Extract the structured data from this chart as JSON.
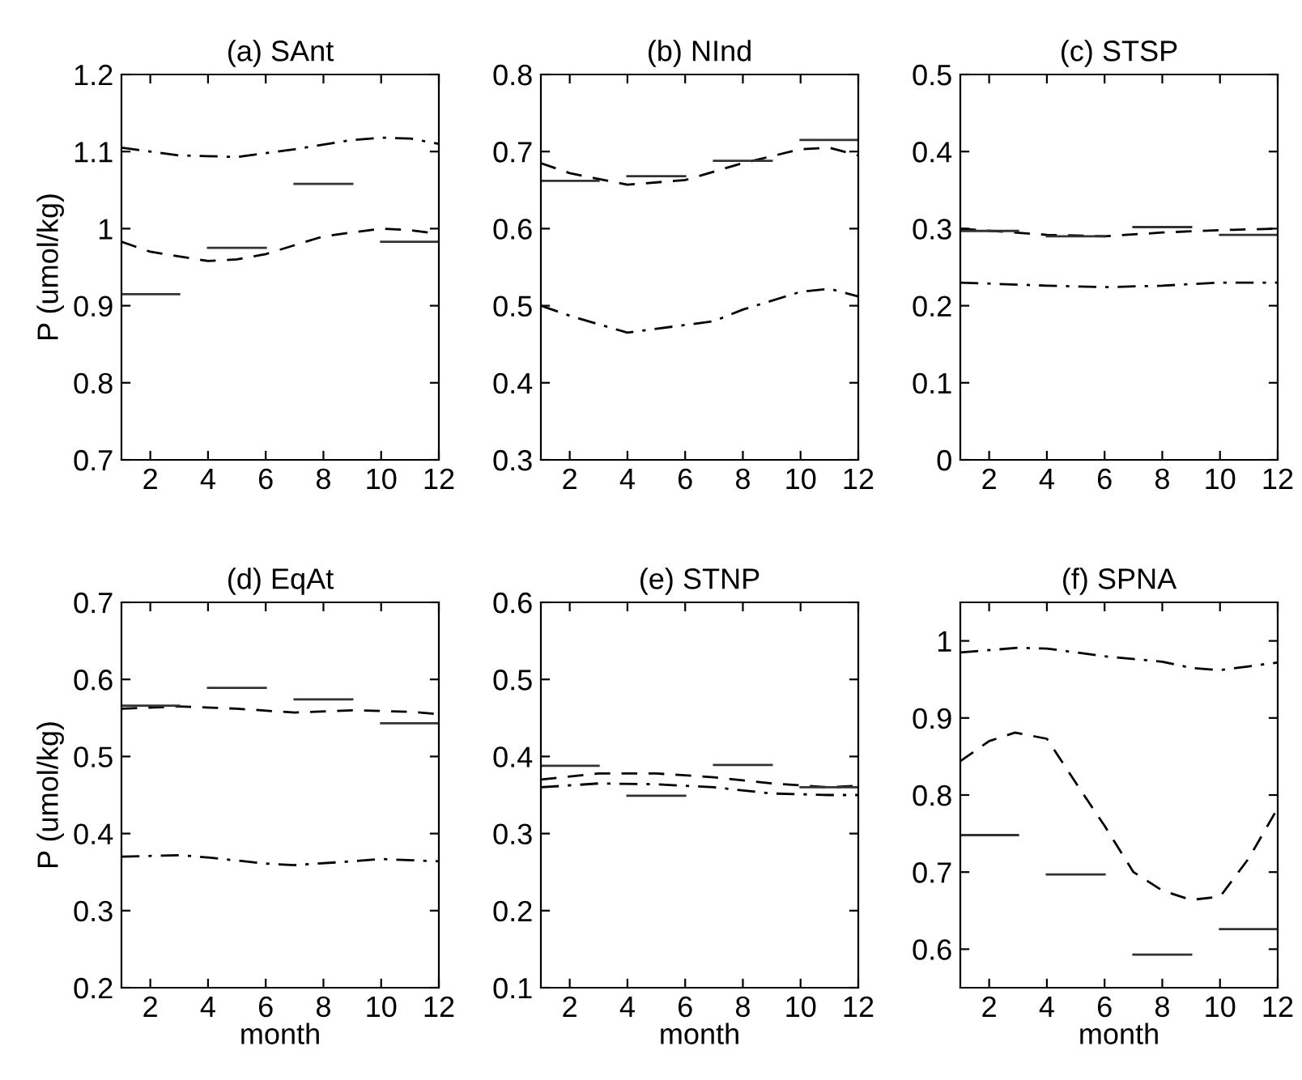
{
  "chart_data": [
    {
      "type": "line",
      "title": "(a) SAnt",
      "ylabel": "P (umol/kg)",
      "xlim": [
        1,
        12
      ],
      "xticks": [
        2,
        4,
        6,
        8,
        10,
        12
      ],
      "ylim": [
        0.7,
        1.2
      ],
      "yticks": [
        0.7,
        0.8,
        0.9,
        1,
        1.1,
        1.2
      ],
      "grid": false,
      "series": [
        {
          "color": "#000000",
          "line_style": "dashdot",
          "x": [
            1,
            3,
            5,
            7,
            9,
            10,
            11,
            12
          ],
          "values": [
            1.105,
            1.095,
            1.093,
            1.103,
            1.115,
            1.118,
            1.117,
            1.11
          ]
        },
        {
          "color": "#000000",
          "line_style": "dashed",
          "x": [
            1,
            2,
            4,
            5,
            6,
            8,
            10,
            11,
            12
          ],
          "values": [
            0.983,
            0.97,
            0.958,
            0.96,
            0.967,
            0.99,
            1.0,
            0.998,
            0.993
          ]
        },
        {
          "color": "#333333",
          "line_style": "solid",
          "x": [
            1,
            3,
            3.5,
            4,
            6,
            6.5,
            7,
            9,
            9.5,
            10,
            12
          ],
          "values": [
            0.915,
            0.915,
            null,
            0.975,
            0.975,
            null,
            1.058,
            1.058,
            null,
            0.983,
            0.983
          ]
        }
      ]
    },
    {
      "type": "line",
      "title": "(b) NInd",
      "xlim": [
        1,
        12
      ],
      "xticks": [
        2,
        4,
        6,
        8,
        10,
        12
      ],
      "ylim": [
        0.3,
        0.8
      ],
      "yticks": [
        0.3,
        0.4,
        0.5,
        0.6,
        0.7,
        0.8
      ],
      "grid": false,
      "series": [
        {
          "color": "#000000",
          "line_style": "dashdot",
          "x": [
            1,
            2,
            4,
            6,
            7,
            8,
            10,
            11,
            12
          ],
          "values": [
            0.5,
            0.487,
            0.465,
            0.475,
            0.48,
            0.495,
            0.518,
            0.522,
            0.512
          ]
        },
        {
          "color": "#000000",
          "line_style": "dashed",
          "x": [
            1,
            2,
            4,
            6,
            8,
            10,
            11,
            12
          ],
          "values": [
            0.685,
            0.672,
            0.657,
            0.663,
            0.685,
            0.703,
            0.705,
            0.695
          ]
        },
        {
          "color": "#333333",
          "line_style": "solid",
          "x": [
            1,
            3,
            3.5,
            4,
            6,
            6.5,
            7,
            9,
            9.5,
            10,
            12
          ],
          "values": [
            0.662,
            0.662,
            null,
            0.668,
            0.668,
            null,
            0.688,
            0.688,
            null,
            0.715,
            0.715
          ]
        }
      ]
    },
    {
      "type": "line",
      "title": "(c) STSP",
      "xlim": [
        1,
        12
      ],
      "xticks": [
        2,
        4,
        6,
        8,
        10,
        12
      ],
      "ylim": [
        0,
        0.5
      ],
      "yticks": [
        0,
        0.1,
        0.2,
        0.3,
        0.4,
        0.5
      ],
      "grid": false,
      "series": [
        {
          "color": "#000000",
          "line_style": "dashdot",
          "x": [
            1,
            4,
            6,
            8,
            10,
            12
          ],
          "values": [
            0.23,
            0.226,
            0.224,
            0.226,
            0.23,
            0.23
          ]
        },
        {
          "color": "#000000",
          "line_style": "dashed",
          "x": [
            1,
            4,
            6,
            8,
            10,
            12
          ],
          "values": [
            0.3,
            0.292,
            0.29,
            0.295,
            0.298,
            0.3
          ]
        },
        {
          "color": "#333333",
          "line_style": "solid",
          "x": [
            1,
            3,
            3.5,
            4,
            6,
            6.5,
            7,
            9,
            9.5,
            10,
            12
          ],
          "values": [
            0.297,
            0.297,
            null,
            0.29,
            0.29,
            null,
            0.302,
            0.302,
            null,
            0.292,
            0.292
          ]
        }
      ]
    },
    {
      "type": "line",
      "title": "(d) EqAt",
      "xlabel": "month",
      "ylabel": "P (umol/kg)",
      "xlim": [
        1,
        12
      ],
      "xticks": [
        2,
        4,
        6,
        8,
        10,
        12
      ],
      "ylim": [
        0.2,
        0.7
      ],
      "yticks": [
        0.2,
        0.3,
        0.4,
        0.5,
        0.6,
        0.7
      ],
      "grid": false,
      "series": [
        {
          "color": "#000000",
          "line_style": "dashdot",
          "x": [
            1,
            3,
            4,
            6,
            7,
            9,
            10,
            12
          ],
          "values": [
            0.37,
            0.372,
            0.369,
            0.361,
            0.359,
            0.364,
            0.367,
            0.364
          ]
        },
        {
          "color": "#000000",
          "line_style": "dashed",
          "x": [
            1,
            3,
            5,
            7,
            9,
            11,
            12
          ],
          "values": [
            0.562,
            0.565,
            0.562,
            0.557,
            0.56,
            0.558,
            0.555
          ]
        },
        {
          "color": "#333333",
          "line_style": "solid",
          "x": [
            1,
            3,
            3.5,
            4,
            6,
            6.5,
            7,
            9,
            9.5,
            10,
            12
          ],
          "values": [
            0.566,
            0.566,
            null,
            0.589,
            0.589,
            null,
            0.574,
            0.574,
            null,
            0.543,
            0.543
          ]
        }
      ]
    },
    {
      "type": "line",
      "title": "(e) STNP",
      "xlabel": "month",
      "xlim": [
        1,
        12
      ],
      "xticks": [
        2,
        4,
        6,
        8,
        10,
        12
      ],
      "ylim": [
        0.1,
        0.6
      ],
      "yticks": [
        0.1,
        0.2,
        0.3,
        0.4,
        0.5,
        0.6
      ],
      "grid": false,
      "series": [
        {
          "color": "#000000",
          "line_style": "dashdot",
          "x": [
            1,
            3,
            5,
            7,
            9,
            11,
            12
          ],
          "values": [
            0.36,
            0.365,
            0.364,
            0.36,
            0.352,
            0.35,
            0.35
          ]
        },
        {
          "color": "#000000",
          "line_style": "dashed",
          "x": [
            1,
            3,
            5,
            7,
            9,
            11,
            12
          ],
          "values": [
            0.37,
            0.378,
            0.378,
            0.373,
            0.365,
            0.36,
            0.362
          ]
        },
        {
          "color": "#333333",
          "line_style": "solid",
          "x": [
            1,
            3,
            3.5,
            4,
            6,
            6.5,
            7,
            9,
            9.5,
            10,
            12
          ],
          "values": [
            0.388,
            0.388,
            null,
            0.349,
            0.349,
            null,
            0.389,
            0.389,
            null,
            0.36,
            0.36
          ]
        }
      ]
    },
    {
      "type": "line",
      "title": "(f) SPNA",
      "xlabel": "month",
      "xlim": [
        1,
        12
      ],
      "xticks": [
        2,
        4,
        6,
        8,
        10,
        12
      ],
      "ylim": [
        0.55,
        1.05
      ],
      "yticks": [
        0.6,
        0.7,
        0.8,
        0.9,
        1
      ],
      "grid": false,
      "series": [
        {
          "color": "#000000",
          "line_style": "dashdot",
          "x": [
            1,
            3,
            4,
            6,
            8,
            9,
            10,
            11,
            12
          ],
          "values": [
            0.985,
            0.991,
            0.99,
            0.98,
            0.973,
            0.965,
            0.962,
            0.967,
            0.972
          ]
        },
        {
          "color": "#000000",
          "line_style": "dashed",
          "x": [
            1,
            2,
            2.9,
            4,
            5,
            6,
            7,
            8,
            9,
            10,
            11,
            12
          ],
          "values": [
            0.844,
            0.87,
            0.881,
            0.873,
            0.816,
            0.76,
            0.7,
            0.676,
            0.664,
            0.668,
            0.718,
            0.783
          ]
        },
        {
          "color": "#333333",
          "line_style": "solid",
          "x": [
            1,
            3,
            3.5,
            4,
            6,
            6.5,
            7,
            9,
            9.5,
            10,
            12
          ],
          "values": [
            0.748,
            0.748,
            null,
            0.697,
            0.697,
            null,
            0.593,
            0.593,
            null,
            0.626,
            0.626
          ]
        }
      ]
    }
  ]
}
